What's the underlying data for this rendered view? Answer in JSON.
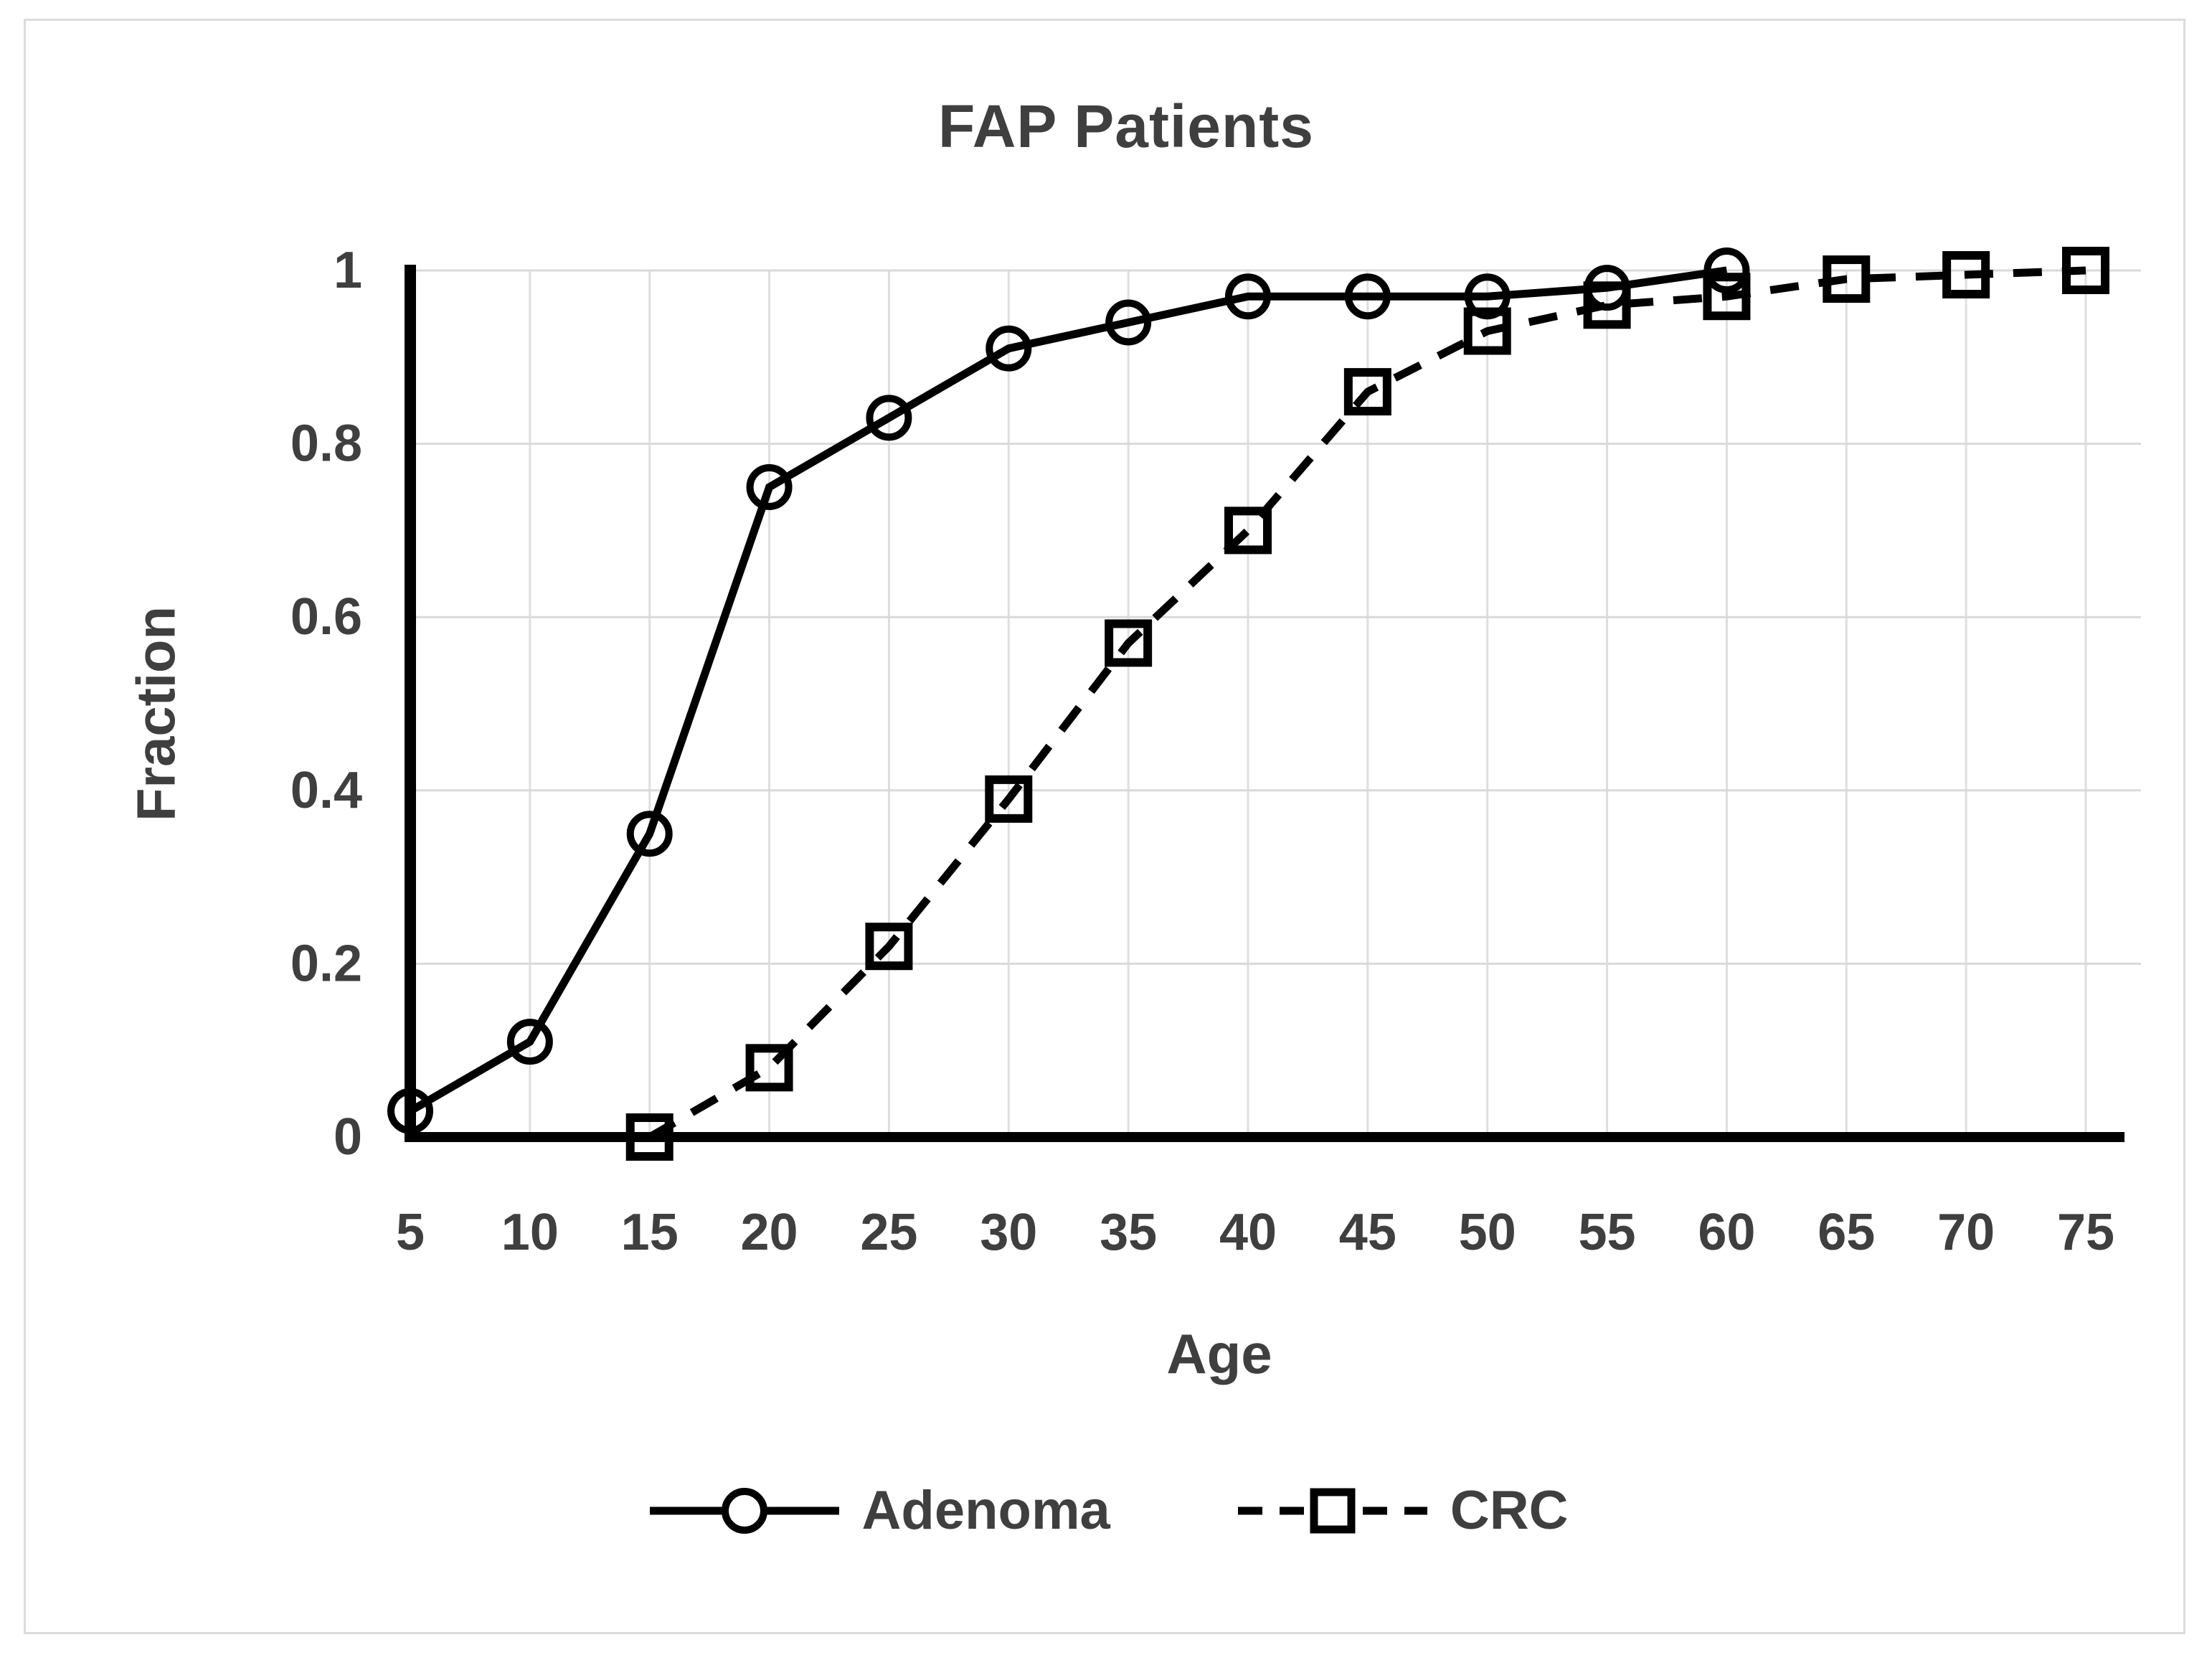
{
  "colors": {
    "text": "#3f3f3f",
    "series_line": "#000000",
    "grid": "#d9d9d9",
    "axis": "#000000",
    "frame_border": "#dcdcdc",
    "background": "#ffffff"
  },
  "chart_data": {
    "type": "line",
    "title": "FAP Patients",
    "xlabel": "Age",
    "ylabel": "Fraction",
    "x_ticks": [
      5,
      10,
      15,
      20,
      25,
      30,
      35,
      40,
      45,
      50,
      55,
      60,
      65,
      70,
      75
    ],
    "y_ticks": [
      0,
      0.2,
      0.4,
      0.6,
      0.8,
      1
    ],
    "y_tick_labels": [
      "0",
      "0.2",
      "0.4",
      "0.6",
      "0.8",
      "1"
    ],
    "xlim": [
      5,
      77
    ],
    "ylim": [
      0,
      1
    ],
    "grid": true,
    "legend_position": "bottom-center",
    "series": [
      {
        "name": "Adenoma",
        "line_style": "solid",
        "marker": "circle",
        "points": [
          [
            5,
            0.03
          ],
          [
            10,
            0.11
          ],
          [
            15,
            0.35
          ],
          [
            20,
            0.75
          ],
          [
            25,
            0.83
          ],
          [
            30,
            0.91
          ],
          [
            35,
            0.94
          ],
          [
            40,
            0.97
          ],
          [
            45,
            0.97
          ],
          [
            50,
            0.97
          ],
          [
            55,
            0.98
          ],
          [
            60,
            1.0
          ]
        ]
      },
      {
        "name": "CRC",
        "line_style": "dashed",
        "marker": "square",
        "points": [
          [
            15,
            0.0
          ],
          [
            20,
            0.08
          ],
          [
            25,
            0.22
          ],
          [
            30,
            0.39
          ],
          [
            35,
            0.57
          ],
          [
            40,
            0.7
          ],
          [
            45,
            0.86
          ],
          [
            50,
            0.93
          ],
          [
            55,
            0.96
          ],
          [
            60,
            0.97
          ],
          [
            65,
            0.99
          ],
          [
            70,
            0.995
          ],
          [
            75,
            1.0
          ]
        ]
      }
    ]
  }
}
